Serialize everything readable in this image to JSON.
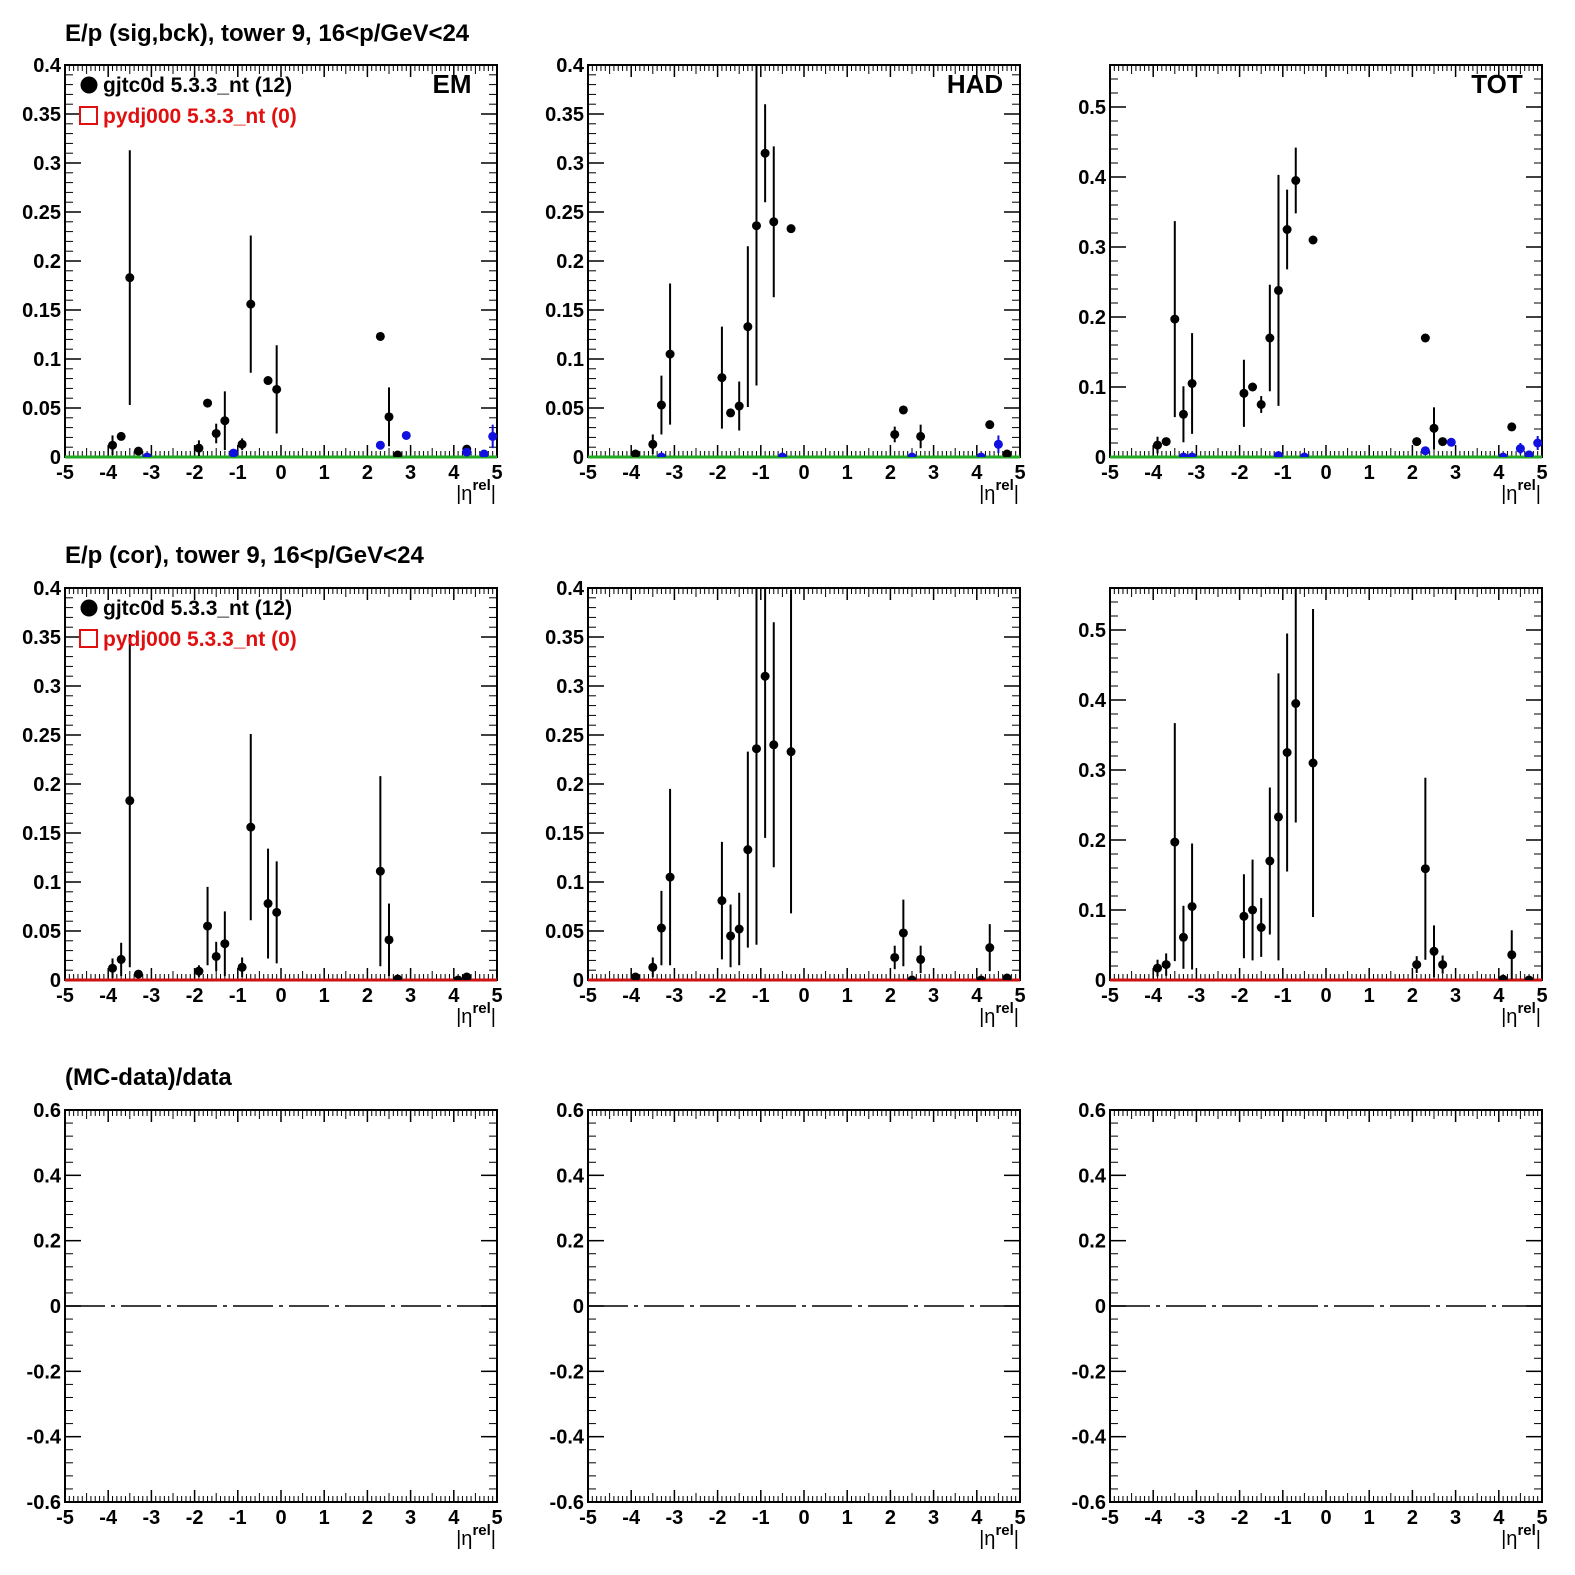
{
  "colors": {
    "data": "#000000",
    "background_points": "#1010e0",
    "mc": "#e01010",
    "zero_line_top": "#22aa22",
    "zero_line_mid": "#cc1111"
  },
  "legend": {
    "data_label": "gjtc0d 5.3.3_nt (12)",
    "mc_label": "pydj000 5.3.3_nt (0)"
  },
  "row_titles": [
    "E/p (sig,bck), tower 9, 16<p/GeV<24",
    "E/p (cor), tower 9, 16<p/GeV<24",
    "(MC-data)/data"
  ],
  "panel_labels": [
    "EM",
    "HAD",
    "TOT"
  ],
  "x_axis": {
    "label_main": "|η",
    "label_sup": "rel",
    "label_close": "|",
    "ticks": [
      "-5",
      "-4",
      "-3",
      "-2",
      "-1",
      "0",
      "1",
      "2",
      "3",
      "4",
      "5"
    ],
    "range": [
      -5,
      5
    ]
  },
  "chart_data": [
    {
      "type": "scatter",
      "row": 0,
      "col": 0,
      "label": "EM",
      "ylim": [
        0,
        0.4
      ],
      "yticks": [
        0,
        0.05,
        0.1,
        0.15,
        0.2,
        0.25,
        0.3,
        0.35,
        0.4
      ],
      "ytick_labels": [
        "0",
        "0.05",
        "0.1",
        "0.15",
        "0.2",
        "0.25",
        "0.3",
        "0.35",
        "0.4"
      ],
      "series": [
        {
          "style": "data",
          "points": [
            {
              "x": -3.9,
              "y": 0.012,
              "err": 0.01
            },
            {
              "x": -3.7,
              "y": 0.021,
              "err": 0.0
            },
            {
              "x": -3.5,
              "y": 0.183,
              "err": 0.13
            },
            {
              "x": -3.3,
              "y": 0.006,
              "err": 0.0
            },
            {
              "x": -1.9,
              "y": 0.009,
              "err": 0.008
            },
            {
              "x": -1.7,
              "y": 0.055,
              "err": 0.0
            },
            {
              "x": -1.5,
              "y": 0.024,
              "err": 0.01
            },
            {
              "x": -1.3,
              "y": 0.037,
              "err": 0.03
            },
            {
              "x": -0.9,
              "y": 0.013,
              "err": 0.006
            },
            {
              "x": -0.7,
              "y": 0.156,
              "err": 0.07
            },
            {
              "x": -0.3,
              "y": 0.078,
              "err": 0.0
            },
            {
              "x": -0.1,
              "y": 0.069,
              "err": 0.045
            },
            {
              "x": 2.3,
              "y": 0.123,
              "err": 0.0
            },
            {
              "x": 2.5,
              "y": 0.041,
              "err": 0.03
            },
            {
              "x": 2.7,
              "y": 0.002,
              "err": 0.0
            },
            {
              "x": 4.3,
              "y": 0.008,
              "err": 0.0
            }
          ]
        },
        {
          "style": "background",
          "points": [
            {
              "x": -3.1,
              "y": 0.0,
              "err": 0.0
            },
            {
              "x": -1.1,
              "y": 0.004,
              "err": 0.0
            },
            {
              "x": 2.3,
              "y": 0.012,
              "err": 0.0
            },
            {
              "x": 2.9,
              "y": 0.022,
              "err": 0.0
            },
            {
              "x": 4.3,
              "y": 0.005,
              "err": 0.0
            },
            {
              "x": 4.7,
              "y": 0.003,
              "err": 0.0
            },
            {
              "x": 4.9,
              "y": 0.021,
              "err": 0.012
            }
          ]
        }
      ],
      "zero_line": "green"
    },
    {
      "type": "scatter",
      "row": 0,
      "col": 1,
      "label": "HAD",
      "ylim": [
        0,
        0.4
      ],
      "yticks": [
        0,
        0.05,
        0.1,
        0.15,
        0.2,
        0.25,
        0.3,
        0.35,
        0.4
      ],
      "ytick_labels": [
        "0",
        "0.05",
        "0.1",
        "0.15",
        "0.2",
        "0.25",
        "0.3",
        "0.35",
        "0.4"
      ],
      "series": [
        {
          "style": "data",
          "points": [
            {
              "x": -3.9,
              "y": 0.003,
              "err": 0.0
            },
            {
              "x": -3.5,
              "y": 0.013,
              "err": 0.01
            },
            {
              "x": -3.3,
              "y": 0.053,
              "err": 0.03
            },
            {
              "x": -3.1,
              "y": 0.105,
              "err": 0.072
            },
            {
              "x": -1.9,
              "y": 0.081,
              "err": 0.052
            },
            {
              "x": -1.7,
              "y": 0.045,
              "err": 0.0
            },
            {
              "x": -1.5,
              "y": 0.052,
              "err": 0.025
            },
            {
              "x": -1.3,
              "y": 0.133,
              "err": 0.082
            },
            {
              "x": -1.1,
              "y": 0.236,
              "err": 0.163
            },
            {
              "x": -0.9,
              "y": 0.31,
              "err": 0.05
            },
            {
              "x": -0.7,
              "y": 0.24,
              "err": 0.077
            },
            {
              "x": -0.3,
              "y": 0.233,
              "err": 0.0
            },
            {
              "x": 2.1,
              "y": 0.023,
              "err": 0.008
            },
            {
              "x": 2.3,
              "y": 0.048,
              "err": 0.0
            },
            {
              "x": 2.7,
              "y": 0.021,
              "err": 0.012
            },
            {
              "x": 4.3,
              "y": 0.033,
              "err": 0.0
            },
            {
              "x": 4.7,
              "y": 0.003,
              "err": 0.0
            }
          ]
        },
        {
          "style": "background",
          "points": [
            {
              "x": -3.3,
              "y": 0.0,
              "err": 0.0
            },
            {
              "x": -0.5,
              "y": 0.0,
              "err": 0.0
            },
            {
              "x": 2.5,
              "y": 0.0,
              "err": 0.0
            },
            {
              "x": 4.1,
              "y": 0.0,
              "err": 0.0
            },
            {
              "x": 4.5,
              "y": 0.013,
              "err": 0.009
            }
          ]
        }
      ],
      "zero_line": "green"
    },
    {
      "type": "scatter",
      "row": 0,
      "col": 2,
      "label": "TOT",
      "ylim": [
        0,
        0.56
      ],
      "yticks": [
        0,
        0.1,
        0.2,
        0.3,
        0.4,
        0.5
      ],
      "ytick_labels": [
        "0",
        "0.1",
        "0.2",
        "0.3",
        "0.4",
        "0.5"
      ],
      "series": [
        {
          "style": "data",
          "points": [
            {
              "x": -3.9,
              "y": 0.017,
              "err": 0.012
            },
            {
              "x": -3.7,
              "y": 0.022,
              "err": 0.0
            },
            {
              "x": -3.5,
              "y": 0.197,
              "err": 0.14
            },
            {
              "x": -3.3,
              "y": 0.061,
              "err": 0.04
            },
            {
              "x": -3.1,
              "y": 0.105,
              "err": 0.072
            },
            {
              "x": -1.9,
              "y": 0.091,
              "err": 0.048
            },
            {
              "x": -1.7,
              "y": 0.1,
              "err": 0.0
            },
            {
              "x": -1.5,
              "y": 0.075,
              "err": 0.012
            },
            {
              "x": -1.3,
              "y": 0.17,
              "err": 0.076
            },
            {
              "x": -1.1,
              "y": 0.238,
              "err": 0.165
            },
            {
              "x": -0.9,
              "y": 0.325,
              "err": 0.057
            },
            {
              "x": -0.7,
              "y": 0.395,
              "err": 0.047
            },
            {
              "x": -0.3,
              "y": 0.31,
              "err": 0.0
            },
            {
              "x": 2.1,
              "y": 0.022,
              "err": 0.0
            },
            {
              "x": 2.3,
              "y": 0.17,
              "err": 0.0
            },
            {
              "x": 2.5,
              "y": 0.041,
              "err": 0.03
            },
            {
              "x": 2.7,
              "y": 0.022,
              "err": 0.0
            },
            {
              "x": 4.3,
              "y": 0.043,
              "err": 0.0
            }
          ]
        },
        {
          "style": "background",
          "points": [
            {
              "x": -3.3,
              "y": 0.0,
              "err": 0.0
            },
            {
              "x": -3.1,
              "y": 0.0,
              "err": 0.0
            },
            {
              "x": -1.1,
              "y": 0.002,
              "err": 0.0
            },
            {
              "x": -0.5,
              "y": 0.0,
              "err": 0.0
            },
            {
              "x": 2.3,
              "y": 0.009,
              "err": 0.0
            },
            {
              "x": 2.9,
              "y": 0.021,
              "err": 0.0
            },
            {
              "x": 4.1,
              "y": 0.0,
              "err": 0.0
            },
            {
              "x": 4.5,
              "y": 0.012,
              "err": 0.008
            },
            {
              "x": 4.7,
              "y": 0.003,
              "err": 0.0
            },
            {
              "x": 4.9,
              "y": 0.02,
              "err": 0.01
            }
          ]
        }
      ],
      "zero_line": "green"
    },
    {
      "type": "scatter",
      "row": 1,
      "col": 0,
      "label": "",
      "ylim": [
        0,
        0.4
      ],
      "yticks": [
        0,
        0.05,
        0.1,
        0.15,
        0.2,
        0.25,
        0.3,
        0.35,
        0.4
      ],
      "ytick_labels": [
        "0",
        "0.05",
        "0.1",
        "0.15",
        "0.2",
        "0.25",
        "0.3",
        "0.35",
        "0.4"
      ],
      "series": [
        {
          "style": "data",
          "points": [
            {
              "x": -3.9,
              "y": 0.012,
              "err": 0.01
            },
            {
              "x": -3.7,
              "y": 0.021,
              "err": 0.017
            },
            {
              "x": -3.5,
              "y": 0.183,
              "err": 0.17
            },
            {
              "x": -3.3,
              "y": 0.006,
              "err": 0.004
            },
            {
              "x": -1.9,
              "y": 0.009,
              "err": 0.006
            },
            {
              "x": -1.7,
              "y": 0.055,
              "err": 0.04
            },
            {
              "x": -1.5,
              "y": 0.024,
              "err": 0.015
            },
            {
              "x": -1.3,
              "y": 0.037,
              "err": 0.033
            },
            {
              "x": -0.9,
              "y": 0.013,
              "err": 0.01
            },
            {
              "x": -0.7,
              "y": 0.156,
              "err": 0.095
            },
            {
              "x": -0.3,
              "y": 0.078,
              "err": 0.056
            },
            {
              "x": -0.1,
              "y": 0.069,
              "err": 0.052
            },
            {
              "x": 2.3,
              "y": 0.111,
              "err": 0.097
            },
            {
              "x": 2.5,
              "y": 0.041,
              "err": 0.037
            },
            {
              "x": 2.7,
              "y": 0.001,
              "err": 0.0
            },
            {
              "x": 4.1,
              "y": 0.0,
              "err": 0.0
            },
            {
              "x": 4.3,
              "y": 0.003,
              "err": 0.003
            }
          ]
        }
      ],
      "zero_line": "red"
    },
    {
      "type": "scatter",
      "row": 1,
      "col": 1,
      "label": "",
      "ylim": [
        0,
        0.4
      ],
      "yticks": [
        0,
        0.05,
        0.1,
        0.15,
        0.2,
        0.25,
        0.3,
        0.35,
        0.4
      ],
      "ytick_labels": [
        "0",
        "0.05",
        "0.1",
        "0.15",
        "0.2",
        "0.25",
        "0.3",
        "0.35",
        "0.4"
      ],
      "series": [
        {
          "style": "data",
          "points": [
            {
              "x": -3.9,
              "y": 0.003,
              "err": 0.002
            },
            {
              "x": -3.5,
              "y": 0.013,
              "err": 0.01
            },
            {
              "x": -3.3,
              "y": 0.053,
              "err": 0.038
            },
            {
              "x": -3.1,
              "y": 0.105,
              "err": 0.09
            },
            {
              "x": -1.9,
              "y": 0.081,
              "err": 0.06
            },
            {
              "x": -1.7,
              "y": 0.045,
              "err": 0.032
            },
            {
              "x": -1.5,
              "y": 0.052,
              "err": 0.037
            },
            {
              "x": -1.3,
              "y": 0.133,
              "err": 0.1
            },
            {
              "x": -1.1,
              "y": 0.236,
              "err": 0.2
            },
            {
              "x": -0.9,
              "y": 0.31,
              "err": 0.165
            },
            {
              "x": -0.7,
              "y": 0.24,
              "err": 0.125
            },
            {
              "x": -0.3,
              "y": 0.233,
              "err": 0.165
            },
            {
              "x": 2.1,
              "y": 0.023,
              "err": 0.012
            },
            {
              "x": 2.3,
              "y": 0.048,
              "err": 0.034
            },
            {
              "x": 2.5,
              "y": 0.0,
              "err": 0.0
            },
            {
              "x": 2.7,
              "y": 0.021,
              "err": 0.014
            },
            {
              "x": 4.1,
              "y": 0.0,
              "err": 0.0
            },
            {
              "x": 4.3,
              "y": 0.033,
              "err": 0.024
            },
            {
              "x": 4.7,
              "y": 0.002,
              "err": 0.0
            }
          ]
        }
      ],
      "zero_line": "red"
    },
    {
      "type": "scatter",
      "row": 1,
      "col": 2,
      "label": "",
      "ylim": [
        0,
        0.56
      ],
      "yticks": [
        0,
        0.1,
        0.2,
        0.3,
        0.4,
        0.5
      ],
      "ytick_labels": [
        "0",
        "0.1",
        "0.2",
        "0.3",
        "0.4",
        "0.5"
      ],
      "series": [
        {
          "style": "data",
          "points": [
            {
              "x": -3.9,
              "y": 0.017,
              "err": 0.012
            },
            {
              "x": -3.7,
              "y": 0.022,
              "err": 0.016
            },
            {
              "x": -3.5,
              "y": 0.197,
              "err": 0.17
            },
            {
              "x": -3.3,
              "y": 0.061,
              "err": 0.045
            },
            {
              "x": -3.1,
              "y": 0.105,
              "err": 0.09
            },
            {
              "x": -1.9,
              "y": 0.091,
              "err": 0.06
            },
            {
              "x": -1.7,
              "y": 0.1,
              "err": 0.072
            },
            {
              "x": -1.5,
              "y": 0.075,
              "err": 0.042
            },
            {
              "x": -1.3,
              "y": 0.17,
              "err": 0.105
            },
            {
              "x": -1.1,
              "y": 0.233,
              "err": 0.205
            },
            {
              "x": -0.9,
              "y": 0.325,
              "err": 0.17
            },
            {
              "x": -0.7,
              "y": 0.395,
              "err": 0.17
            },
            {
              "x": -0.3,
              "y": 0.31,
              "err": 0.22
            },
            {
              "x": 2.1,
              "y": 0.022,
              "err": 0.012
            },
            {
              "x": 2.3,
              "y": 0.159,
              "err": 0.13
            },
            {
              "x": 2.5,
              "y": 0.041,
              "err": 0.037
            },
            {
              "x": 2.7,
              "y": 0.022,
              "err": 0.013
            },
            {
              "x": 4.1,
              "y": 0.001,
              "err": 0.0
            },
            {
              "x": 4.3,
              "y": 0.036,
              "err": 0.035
            },
            {
              "x": 4.7,
              "y": 0.0,
              "err": 0.0
            }
          ]
        }
      ],
      "zero_line": "red"
    },
    {
      "type": "line",
      "row": 2,
      "col": 0,
      "label": "",
      "ylim": [
        -0.6,
        0.6
      ],
      "yticks": [
        -0.6,
        -0.4,
        -0.2,
        0,
        0.2,
        0.4,
        0.6
      ],
      "ytick_labels": [
        "-0.6",
        "-0.4",
        "-0.2",
        "0",
        "0.2",
        "0.4",
        "0.6"
      ],
      "series": [],
      "zero_line": "dashdot"
    },
    {
      "type": "line",
      "row": 2,
      "col": 1,
      "label": "",
      "ylim": [
        -0.6,
        0.6
      ],
      "yticks": [
        -0.6,
        -0.4,
        -0.2,
        0,
        0.2,
        0.4,
        0.6
      ],
      "ytick_labels": [
        "-0.6",
        "-0.4",
        "-0.2",
        "0",
        "0.2",
        "0.4",
        "0.6"
      ],
      "series": [],
      "zero_line": "dashdot"
    },
    {
      "type": "line",
      "row": 2,
      "col": 2,
      "label": "",
      "ylim": [
        -0.6,
        0.6
      ],
      "yticks": [
        -0.6,
        -0.4,
        -0.2,
        0,
        0.2,
        0.4,
        0.6
      ],
      "ytick_labels": [
        "-0.6",
        "-0.4",
        "-0.2",
        "0",
        "0.2",
        "0.4",
        "0.6"
      ],
      "series": [],
      "zero_line": "dashdot"
    }
  ]
}
